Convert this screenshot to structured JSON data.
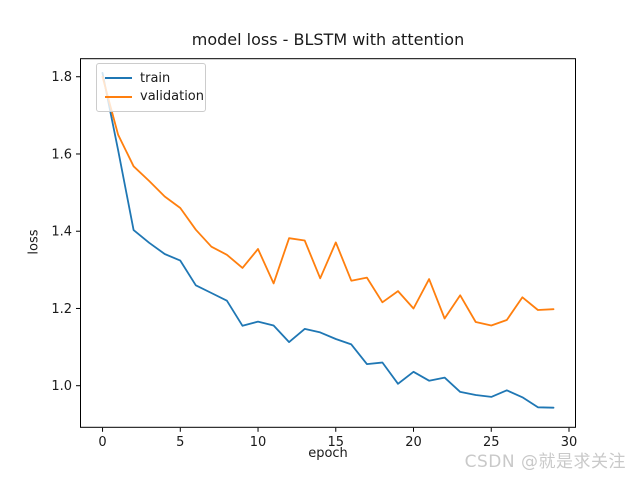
{
  "title": "model loss - BLSTM with attention",
  "watermark": "CSDN @就是求关注",
  "chart_data": {
    "type": "line",
    "title": "model loss - BLSTM with attention",
    "xlabel": "epoch",
    "ylabel": "loss",
    "grid": false,
    "legend_position": "upper-left",
    "xlim": [
      -1.45,
      30.45
    ],
    "ylim": [
      0.891,
      1.848
    ],
    "xticks": [
      0,
      5,
      10,
      15,
      20,
      25,
      30
    ],
    "yticks": [
      1.0,
      1.2,
      1.4,
      1.6,
      1.8
    ],
    "x": [
      0,
      1,
      2,
      3,
      4,
      5,
      6,
      7,
      8,
      9,
      10,
      11,
      12,
      13,
      14,
      15,
      16,
      17,
      18,
      19,
      20,
      21,
      22,
      23,
      24,
      25,
      26,
      27,
      28,
      29
    ],
    "series": [
      {
        "name": "train",
        "color": "#1f77b4",
        "values": [
          1.81,
          1.61,
          1.403,
          1.37,
          1.341,
          1.324,
          1.26,
          1.24,
          1.22,
          1.155,
          1.166,
          1.156,
          1.113,
          1.147,
          1.138,
          1.121,
          1.107,
          1.056,
          1.06,
          1.005,
          1.036,
          1.013,
          1.021,
          0.984,
          0.976,
          0.971,
          0.988,
          0.97,
          0.944,
          0.943
        ]
      },
      {
        "name": "validation",
        "color": "#ff7f0e",
        "values": [
          1.8,
          1.65,
          1.568,
          1.53,
          1.49,
          1.46,
          1.404,
          1.36,
          1.339,
          1.305,
          1.354,
          1.265,
          1.382,
          1.376,
          1.278,
          1.371,
          1.272,
          1.28,
          1.216,
          1.245,
          1.2,
          1.276,
          1.174,
          1.234,
          1.165,
          1.156,
          1.17,
          1.229,
          1.196,
          1.198
        ]
      }
    ]
  }
}
